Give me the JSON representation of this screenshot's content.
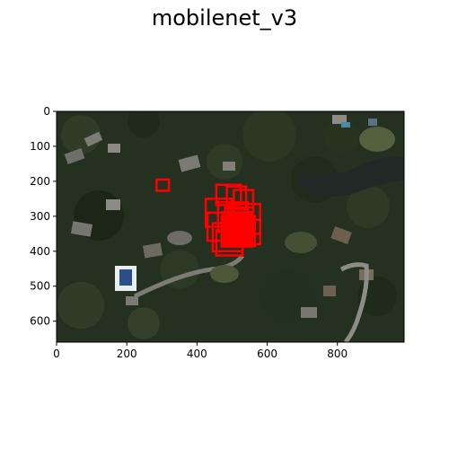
{
  "figure": {
    "title": "mobilenet_v3"
  },
  "chart_data": {
    "type": "image",
    "title": "mobilenet_v3",
    "xlim": [
      0,
      990
    ],
    "ylim": [
      660,
      0
    ],
    "xticks": [
      0,
      200,
      400,
      600,
      800
    ],
    "yticks": [
      0,
      100,
      200,
      300,
      400,
      500,
      600
    ],
    "box_color": "#ff0000",
    "boxes": [
      {
        "x1": 285,
        "y1": 195,
        "x2": 320,
        "y2": 227
      },
      {
        "x1": 455,
        "y1": 210,
        "x2": 525,
        "y2": 268
      },
      {
        "x1": 485,
        "y1": 215,
        "x2": 540,
        "y2": 280
      },
      {
        "x1": 505,
        "y1": 225,
        "x2": 560,
        "y2": 292
      },
      {
        "x1": 425,
        "y1": 250,
        "x2": 500,
        "y2": 330
      },
      {
        "x1": 460,
        "y1": 260,
        "x2": 545,
        "y2": 345
      },
      {
        "x1": 490,
        "y1": 265,
        "x2": 580,
        "y2": 350
      },
      {
        "x1": 430,
        "y1": 290,
        "x2": 520,
        "y2": 370
      },
      {
        "x1": 470,
        "y1": 300,
        "x2": 565,
        "y2": 385
      },
      {
        "x1": 445,
        "y1": 320,
        "x2": 530,
        "y2": 400
      },
      {
        "x1": 455,
        "y1": 340,
        "x2": 530,
        "y2": 412
      },
      {
        "x1": 505,
        "y1": 310,
        "x2": 580,
        "y2": 380
      },
      {
        "x1": 480,
        "y1": 275,
        "x2": 560,
        "y2": 360
      }
    ]
  }
}
